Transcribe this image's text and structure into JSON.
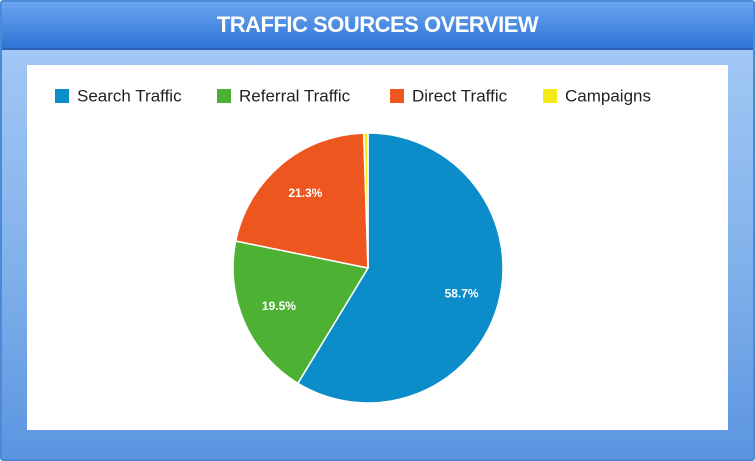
{
  "chart_data": {
    "type": "pie",
    "title": "TRAFFIC SOURCES OVERVIEW",
    "categories": [
      "Search Traffic",
      "Referral Traffic",
      "Direct Traffic",
      "Campaigns"
    ],
    "values": [
      58.7,
      19.5,
      21.3,
      0.5
    ],
    "value_labels": [
      "58.7%",
      "19.5%",
      "21.3%",
      null
    ],
    "colors": [
      "#0a8dc8",
      "#4db233",
      "#ee5620",
      "#f2ea12"
    ],
    "legend": "top"
  }
}
